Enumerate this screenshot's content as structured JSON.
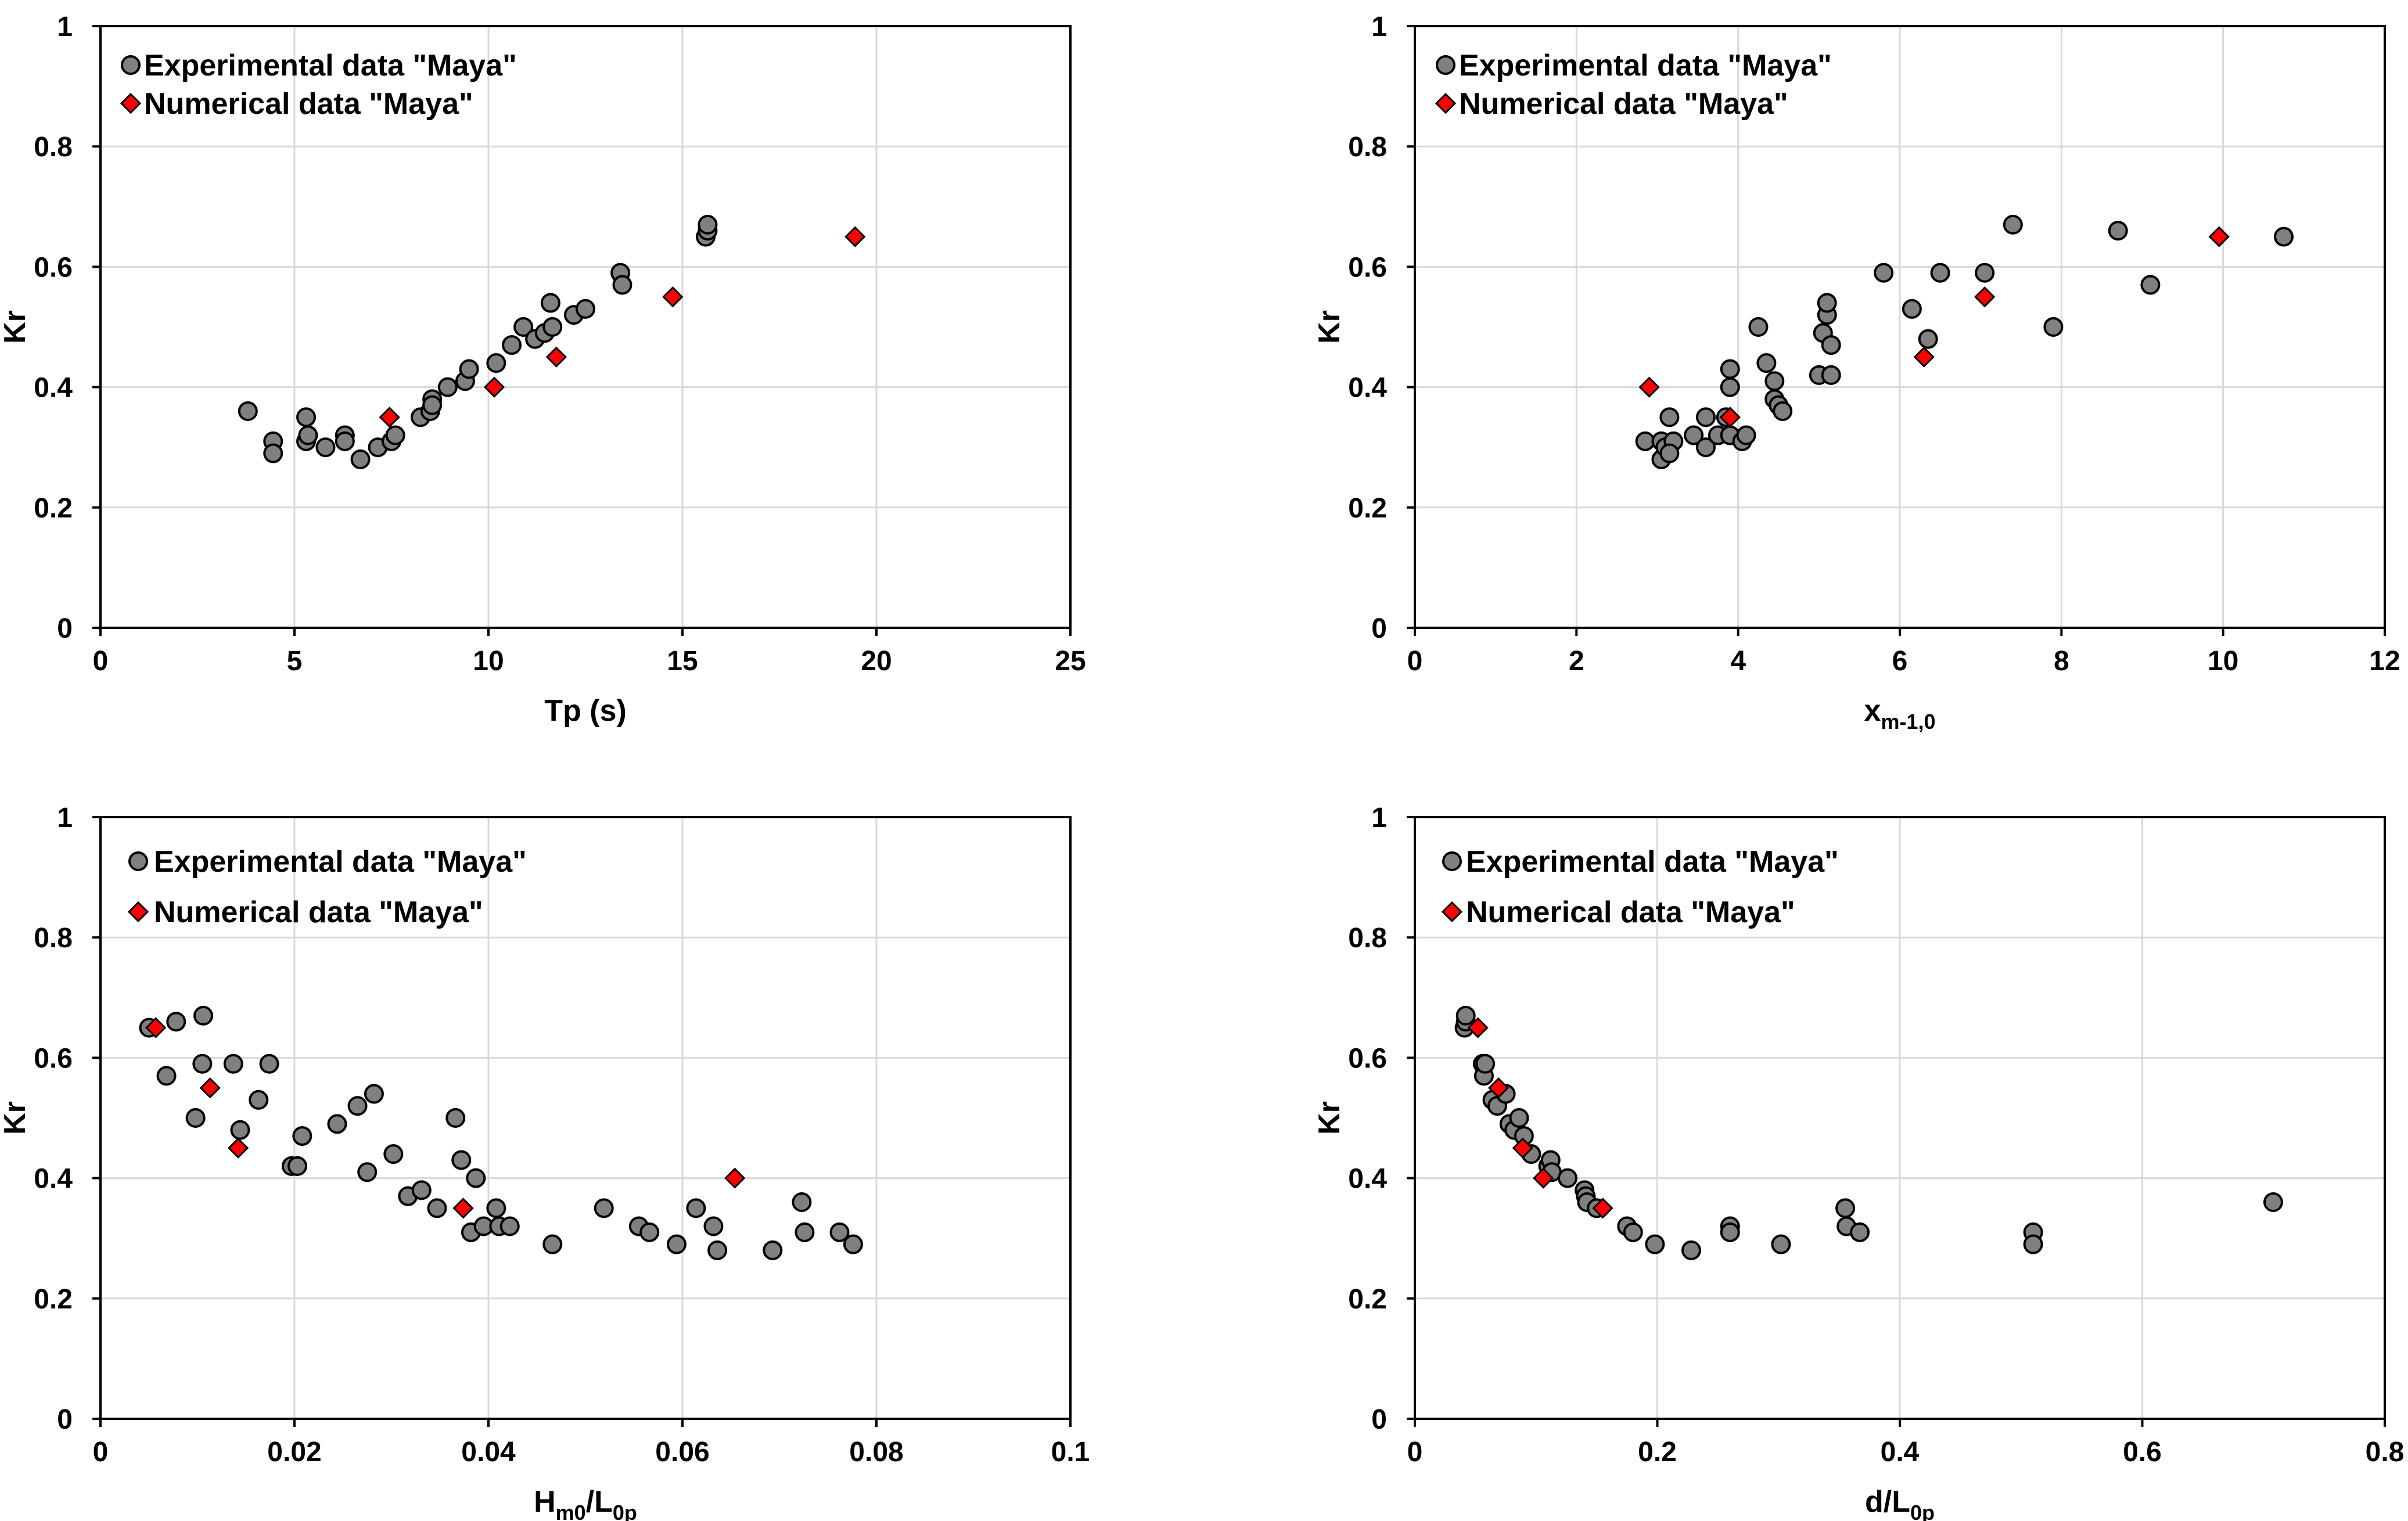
{
  "colors": {
    "experimental": "#808080",
    "numerical": "#ff0000",
    "grid": "#d9d9d9",
    "frame": "#000000"
  },
  "chart_data": [
    {
      "type": "scatter",
      "xlabel": "Tp (s)",
      "ylabel": "Kr",
      "xlim": [
        0,
        25
      ],
      "ylim": [
        0,
        1
      ],
      "xticks": [
        0,
        5,
        10,
        15,
        20,
        25
      ],
      "xtick_labels": [
        "0",
        "5",
        "10",
        "15",
        "20",
        "25"
      ],
      "yticks": [
        0,
        0.2,
        0.4,
        0.6,
        0.8,
        1
      ],
      "ytick_labels": [
        "0",
        "0.2",
        "0.4",
        "0.6",
        "0.8",
        "1"
      ],
      "grid": true,
      "legend_position": "top-left",
      "series": [
        {
          "name": "Experimental data \"Maya\"",
          "marker": "circle",
          "points": [
            [
              3.8,
              0.36
            ],
            [
              4.45,
              0.31
            ],
            [
              4.45,
              0.29
            ],
            [
              5.3,
              0.35
            ],
            [
              5.3,
              0.31
            ],
            [
              5.35,
              0.32
            ],
            [
              5.8,
              0.3
            ],
            [
              6.3,
              0.32
            ],
            [
              6.3,
              0.31
            ],
            [
              6.7,
              0.28
            ],
            [
              7.15,
              0.3
            ],
            [
              7.5,
              0.31
            ],
            [
              7.6,
              0.32
            ],
            [
              8.25,
              0.35
            ],
            [
              8.5,
              0.36
            ],
            [
              8.55,
              0.38
            ],
            [
              8.55,
              0.37
            ],
            [
              8.95,
              0.4
            ],
            [
              9.4,
              0.41
            ],
            [
              9.5,
              0.43
            ],
            [
              10.2,
              0.44
            ],
            [
              10.6,
              0.47
            ],
            [
              10.9,
              0.5
            ],
            [
              11.2,
              0.48
            ],
            [
              11.45,
              0.49
            ],
            [
              11.6,
              0.54
            ],
            [
              11.65,
              0.5
            ],
            [
              12.2,
              0.52
            ],
            [
              12.5,
              0.53
            ],
            [
              13.4,
              0.59
            ],
            [
              13.45,
              0.57
            ],
            [
              15.6,
              0.65
            ],
            [
              15.65,
              0.66
            ],
            [
              15.65,
              0.67
            ]
          ]
        },
        {
          "name": "Numerical data \"Maya\"",
          "marker": "diamond",
          "points": [
            [
              7.45,
              0.35
            ],
            [
              10.15,
              0.4
            ],
            [
              11.75,
              0.45
            ],
            [
              14.75,
              0.55
            ],
            [
              19.45,
              0.65
            ]
          ]
        }
      ]
    },
    {
      "type": "scatter",
      "xlabel": "x",
      "xlabel_subscript": "m-1,0",
      "ylabel": "Kr",
      "xlim": [
        0,
        12
      ],
      "ylim": [
        0,
        1
      ],
      "xticks": [
        0,
        2,
        4,
        6,
        8,
        10,
        12
      ],
      "xtick_labels": [
        "0",
        "2",
        "4",
        "6",
        "8",
        "10",
        "12"
      ],
      "yticks": [
        0,
        0.2,
        0.4,
        0.6,
        0.8,
        1
      ],
      "ytick_labels": [
        "0",
        "0.2",
        "0.4",
        "0.6",
        "0.8",
        "1"
      ],
      "grid": true,
      "legend_position": "top-left",
      "series": [
        {
          "name": "Experimental data \"Maya\"",
          "marker": "circle",
          "points": [
            [
              2.85,
              0.31
            ],
            [
              3.05,
              0.28
            ],
            [
              3.05,
              0.31
            ],
            [
              3.1,
              0.3
            ],
            [
              3.15,
              0.35
            ],
            [
              3.2,
              0.31
            ],
            [
              3.15,
              0.29
            ],
            [
              3.45,
              0.32
            ],
            [
              3.6,
              0.35
            ],
            [
              3.6,
              0.3
            ],
            [
              3.75,
              0.32
            ],
            [
              3.85,
              0.35
            ],
            [
              3.9,
              0.4
            ],
            [
              3.9,
              0.43
            ],
            [
              3.9,
              0.32
            ],
            [
              4.05,
              0.31
            ],
            [
              4.1,
              0.32
            ],
            [
              4.25,
              0.5
            ],
            [
              4.35,
              0.44
            ],
            [
              4.45,
              0.38
            ],
            [
              4.45,
              0.41
            ],
            [
              4.5,
              0.37
            ],
            [
              4.55,
              0.36
            ],
            [
              5.0,
              0.42
            ],
            [
              5.05,
              0.49
            ],
            [
              5.1,
              0.52
            ],
            [
              5.1,
              0.54
            ],
            [
              5.15,
              0.42
            ],
            [
              5.15,
              0.47
            ],
            [
              5.8,
              0.59
            ],
            [
              6.15,
              0.53
            ],
            [
              6.35,
              0.48
            ],
            [
              6.5,
              0.59
            ],
            [
              7.05,
              0.59
            ],
            [
              7.4,
              0.67
            ],
            [
              7.9,
              0.5
            ],
            [
              8.7,
              0.66
            ],
            [
              9.1,
              0.57
            ],
            [
              10.75,
              0.65
            ]
          ]
        },
        {
          "name": "Numerical data \"Maya\"",
          "marker": "diamond",
          "points": [
            [
              2.9,
              0.4
            ],
            [
              3.9,
              0.35
            ],
            [
              6.3,
              0.45
            ],
            [
              7.05,
              0.55
            ],
            [
              9.95,
              0.65
            ]
          ]
        }
      ]
    },
    {
      "type": "scatter",
      "xlabel": "H",
      "xlabel_subscript": "m0",
      "xlabel_mid": "/L",
      "xlabel_subscript2": "0p",
      "ylabel": "Kr",
      "xlim": [
        0,
        0.1
      ],
      "ylim": [
        0,
        1
      ],
      "xticks": [
        0,
        0.02,
        0.04,
        0.06,
        0.08,
        0.1
      ],
      "xtick_labels": [
        "0",
        "0.02",
        "0.04",
        "0.06",
        "0.08",
        "0.1"
      ],
      "yticks": [
        0,
        0.2,
        0.4,
        0.6,
        0.8,
        1
      ],
      "ytick_labels": [
        "0",
        "0.2",
        "0.4",
        "0.6",
        "0.8",
        "1"
      ],
      "grid": true,
      "legend_position": "top-left",
      "series": [
        {
          "name": "Experimental data \"Maya\"",
          "marker": "circle",
          "points": [
            [
              0.005,
              0.65
            ],
            [
              0.0068,
              0.57
            ],
            [
              0.0078,
              0.66
            ],
            [
              0.0098,
              0.5
            ],
            [
              0.0105,
              0.59
            ],
            [
              0.0106,
              0.67
            ],
            [
              0.0137,
              0.59
            ],
            [
              0.0144,
              0.48
            ],
            [
              0.0163,
              0.53
            ],
            [
              0.0174,
              0.59
            ],
            [
              0.0197,
              0.42
            ],
            [
              0.0203,
              0.42
            ],
            [
              0.0208,
              0.47
            ],
            [
              0.0244,
              0.49
            ],
            [
              0.0265,
              0.52
            ],
            [
              0.0275,
              0.41
            ],
            [
              0.0282,
              0.54
            ],
            [
              0.0302,
              0.44
            ],
            [
              0.0317,
              0.37
            ],
            [
              0.0331,
              0.38
            ],
            [
              0.0347,
              0.35
            ],
            [
              0.0366,
              0.5
            ],
            [
              0.0372,
              0.43
            ],
            [
              0.0382,
              0.31
            ],
            [
              0.0387,
              0.4
            ],
            [
              0.0395,
              0.32
            ],
            [
              0.0408,
              0.35
            ],
            [
              0.0411,
              0.32
            ],
            [
              0.0422,
              0.32
            ],
            [
              0.0466,
              0.29
            ],
            [
              0.0519,
              0.35
            ],
            [
              0.0555,
              0.32
            ],
            [
              0.0566,
              0.31
            ],
            [
              0.0594,
              0.29
            ],
            [
              0.0614,
              0.35
            ],
            [
              0.0632,
              0.32
            ],
            [
              0.0636,
              0.28
            ],
            [
              0.0693,
              0.28
            ],
            [
              0.0723,
              0.36
            ],
            [
              0.0726,
              0.31
            ],
            [
              0.0762,
              0.31
            ],
            [
              0.0776,
              0.29
            ]
          ]
        },
        {
          "name": "Numerical data \"Maya\"",
          "marker": "diamond",
          "points": [
            [
              0.0057,
              0.65
            ],
            [
              0.0113,
              0.55
            ],
            [
              0.0142,
              0.45
            ],
            [
              0.0374,
              0.35
            ],
            [
              0.0654,
              0.4
            ]
          ]
        }
      ]
    },
    {
      "type": "scatter",
      "xlabel": "d/L",
      "xlabel_subscript": "0p",
      "ylabel": "Kr",
      "xlim": [
        0,
        0.8
      ],
      "ylim": [
        0,
        1
      ],
      "xticks": [
        0,
        0.2,
        0.4,
        0.6,
        0.8
      ],
      "xtick_labels": [
        "0",
        "0.2",
        "0.4",
        "0.6",
        "0.8"
      ],
      "yticks": [
        0,
        0.2,
        0.4,
        0.6,
        0.8,
        1
      ],
      "ytick_labels": [
        "0",
        "0.2",
        "0.4",
        "0.6",
        "0.8",
        "1"
      ],
      "grid": true,
      "legend_position": "top-left",
      "series": [
        {
          "name": "Experimental data \"Maya\"",
          "marker": "circle",
          "points": [
            [
              0.041,
              0.65
            ],
            [
              0.042,
              0.66
            ],
            [
              0.042,
              0.67
            ],
            [
              0.056,
              0.59
            ],
            [
              0.057,
              0.57
            ],
            [
              0.058,
              0.59
            ],
            [
              0.064,
              0.53
            ],
            [
              0.068,
              0.52
            ],
            [
              0.075,
              0.54
            ],
            [
              0.078,
              0.49
            ],
            [
              0.082,
              0.48
            ],
            [
              0.086,
              0.5
            ],
            [
              0.09,
              0.47
            ],
            [
              0.096,
              0.44
            ],
            [
              0.11,
              0.42
            ],
            [
              0.112,
              0.43
            ],
            [
              0.113,
              0.41
            ],
            [
              0.126,
              0.4
            ],
            [
              0.14,
              0.38
            ],
            [
              0.141,
              0.37
            ],
            [
              0.142,
              0.36
            ],
            [
              0.15,
              0.35
            ],
            [
              0.175,
              0.32
            ],
            [
              0.18,
              0.31
            ],
            [
              0.198,
              0.29
            ],
            [
              0.228,
              0.28
            ],
            [
              0.26,
              0.32
            ],
            [
              0.26,
              0.31
            ],
            [
              0.302,
              0.29
            ],
            [
              0.355,
              0.35
            ],
            [
              0.356,
              0.32
            ],
            [
              0.367,
              0.31
            ],
            [
              0.51,
              0.31
            ],
            [
              0.51,
              0.29
            ],
            [
              0.708,
              0.36
            ]
          ]
        },
        {
          "name": "Numerical data \"Maya\"",
          "marker": "diamond",
          "points": [
            [
              0.052,
              0.65
            ],
            [
              0.069,
              0.55
            ],
            [
              0.089,
              0.45
            ],
            [
              0.106,
              0.4
            ],
            [
              0.155,
              0.35
            ]
          ]
        }
      ]
    }
  ]
}
